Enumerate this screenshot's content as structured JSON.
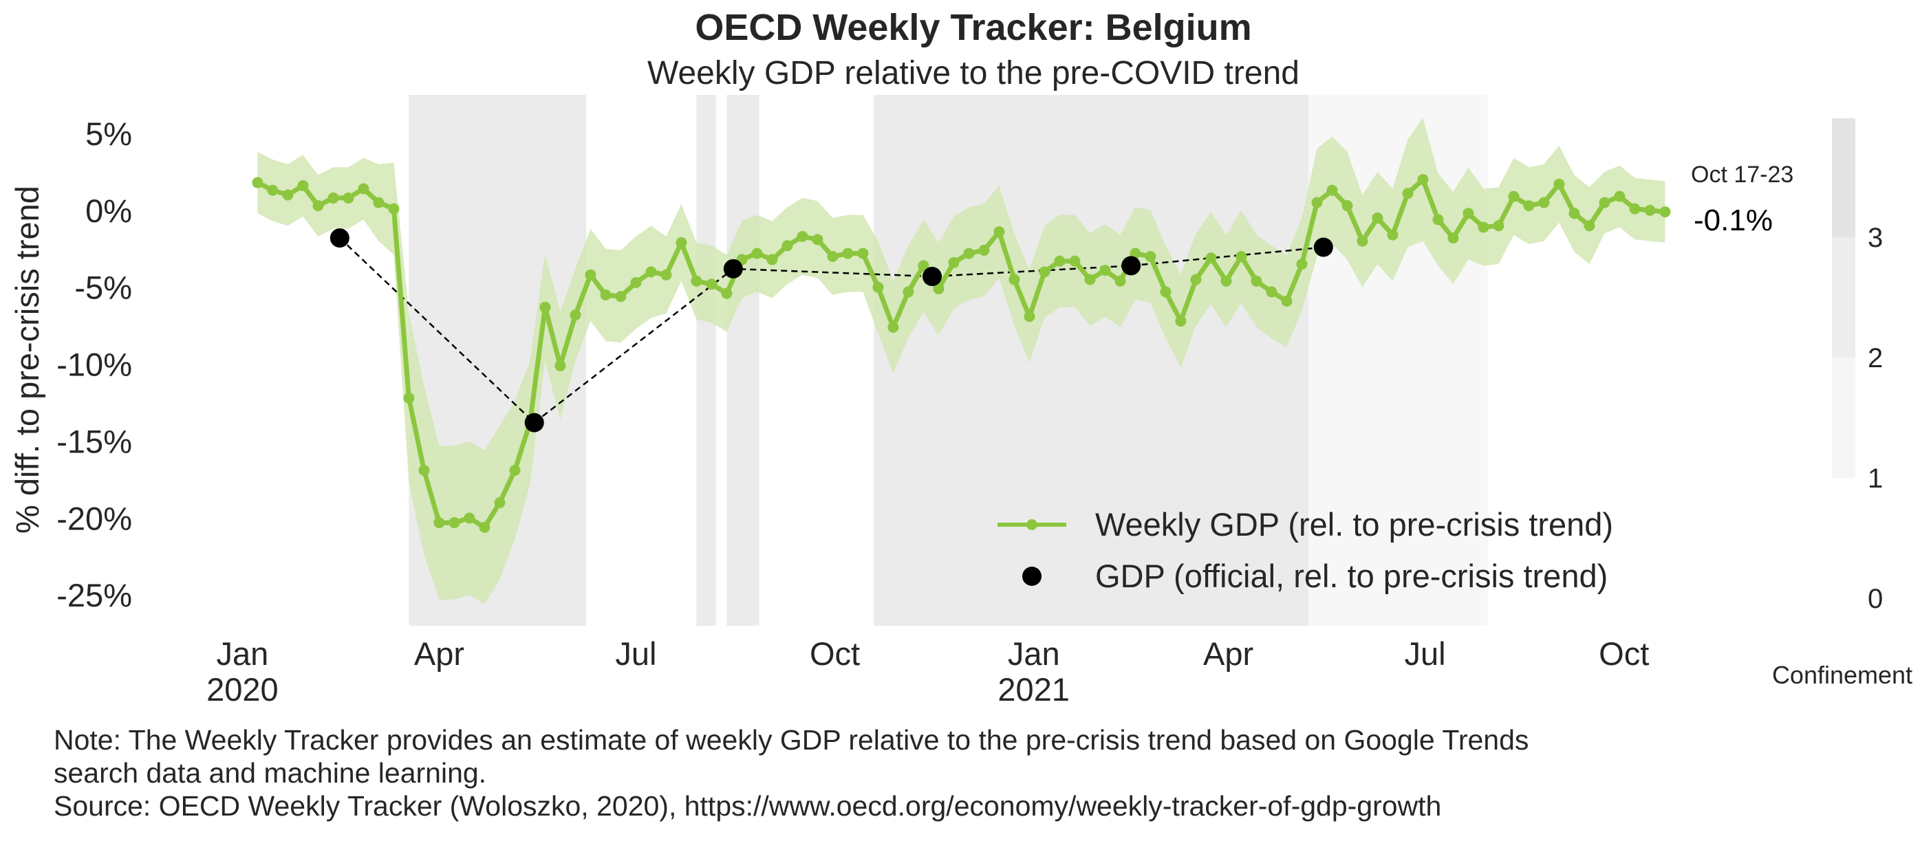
{
  "chart_data": {
    "type": "line",
    "title": "OECD Weekly Tracker: Belgium",
    "subtitle": "Weekly GDP relative to the pre-COVID trend",
    "ylabel": "% diff. to pre-crisis trend",
    "ylim": [
      -27,
      7.5
    ],
    "y_ticks": [
      {
        "value": 5,
        "label": "5%"
      },
      {
        "value": 0,
        "label": "0%"
      },
      {
        "value": -5,
        "label": "-5%"
      },
      {
        "value": -10,
        "label": "-10%"
      },
      {
        "value": -15,
        "label": "-15%"
      },
      {
        "value": -20,
        "label": "-20%"
      },
      {
        "value": -25,
        "label": "-25%"
      }
    ],
    "x_ticks": [
      {
        "date": "2020-01-01",
        "label": "Jan",
        "sublabel": "2020"
      },
      {
        "date": "2020-04-01",
        "label": "Apr",
        "sublabel": ""
      },
      {
        "date": "2020-07-01",
        "label": "Jul",
        "sublabel": ""
      },
      {
        "date": "2020-10-01",
        "label": "Oct",
        "sublabel": ""
      },
      {
        "date": "2021-01-01",
        "label": "Jan",
        "sublabel": "2021"
      },
      {
        "date": "2021-04-01",
        "label": "Apr",
        "sublabel": ""
      },
      {
        "date": "2021-07-01",
        "label": "Jul",
        "sublabel": ""
      },
      {
        "date": "2021-10-01",
        "label": "Oct",
        "sublabel": ""
      }
    ],
    "xlim": [
      "2019-12-01",
      "2021-10-31"
    ],
    "grid": false,
    "legend_placement": "lower-right",
    "series": [
      {
        "name": "Weekly GDP (rel. to pre-crisis trend)",
        "color": "#8cc63f",
        "band_color": "#d2e8b4",
        "x": [
          "2020-01-08",
          "2020-01-15",
          "2020-01-22",
          "2020-01-29",
          "2020-02-05",
          "2020-02-12",
          "2020-02-19",
          "2020-02-26",
          "2020-03-04",
          "2020-03-11",
          "2020-03-18",
          "2020-03-25",
          "2020-04-01",
          "2020-04-08",
          "2020-04-15",
          "2020-04-22",
          "2020-04-29",
          "2020-05-06",
          "2020-05-13",
          "2020-05-20",
          "2020-05-27",
          "2020-06-03",
          "2020-06-10",
          "2020-06-17",
          "2020-06-24",
          "2020-07-01",
          "2020-07-08",
          "2020-07-15",
          "2020-07-22",
          "2020-07-29",
          "2020-08-05",
          "2020-08-12",
          "2020-08-19",
          "2020-08-26",
          "2020-09-02",
          "2020-09-09",
          "2020-09-16",
          "2020-09-23",
          "2020-09-30",
          "2020-10-07",
          "2020-10-14",
          "2020-10-21",
          "2020-10-28",
          "2020-11-04",
          "2020-11-11",
          "2020-11-18",
          "2020-11-25",
          "2020-12-02",
          "2020-12-09",
          "2020-12-16",
          "2020-12-23",
          "2020-12-30",
          "2021-01-06",
          "2021-01-13",
          "2021-01-20",
          "2021-01-27",
          "2021-02-03",
          "2021-02-10",
          "2021-02-17",
          "2021-02-24",
          "2021-03-03",
          "2021-03-10",
          "2021-03-17",
          "2021-03-24",
          "2021-03-31",
          "2021-04-07",
          "2021-04-14",
          "2021-04-21",
          "2021-04-28",
          "2021-05-05",
          "2021-05-12",
          "2021-05-19",
          "2021-05-26",
          "2021-06-02",
          "2021-06-09",
          "2021-06-16",
          "2021-06-23",
          "2021-06-30",
          "2021-07-07",
          "2021-07-14",
          "2021-07-21",
          "2021-07-28",
          "2021-08-04",
          "2021-08-11",
          "2021-08-18",
          "2021-08-25",
          "2021-09-01",
          "2021-09-08",
          "2021-09-15",
          "2021-09-22",
          "2021-09-29",
          "2021-10-06",
          "2021-10-13",
          "2021-10-20"
        ],
        "values": [
          1.8,
          1.3,
          1.0,
          1.6,
          0.3,
          0.8,
          0.8,
          1.4,
          0.5,
          0.1,
          -12.2,
          -16.9,
          -20.3,
          -20.3,
          -20.0,
          -20.6,
          -19.0,
          -16.9,
          -13.8,
          -6.3,
          -10.1,
          -6.8,
          -4.2,
          -5.5,
          -5.6,
          -4.7,
          -4.0,
          -4.2,
          -2.1,
          -4.6,
          -4.8,
          -5.4,
          -3.2,
          -2.8,
          -3.2,
          -2.3,
          -1.7,
          -1.9,
          -3.0,
          -2.8,
          -2.8,
          -5.0,
          -7.6,
          -5.3,
          -3.6,
          -5.1,
          -3.4,
          -2.8,
          -2.6,
          -1.4,
          -4.5,
          -6.9,
          -4.0,
          -3.3,
          -3.3,
          -4.5,
          -3.9,
          -4.6,
          -2.8,
          -3.0,
          -5.3,
          -7.2,
          -4.5,
          -3.1,
          -4.6,
          -3.0,
          -4.6,
          -5.3,
          -5.9,
          -3.5,
          0.5,
          1.3,
          0.3,
          -2.0,
          -0.5,
          -1.6,
          1.1,
          2.0,
          -0.6,
          -1.8,
          -0.2,
          -1.1,
          -1.0,
          0.9,
          0.3,
          0.5,
          1.7,
          -0.2,
          -1.0,
          0.5,
          0.9,
          0.1,
          0.0,
          -0.1
        ],
        "band_halfwidth": [
          2.0,
          2.0,
          2.0,
          2.0,
          2.0,
          2.0,
          2.0,
          2.0,
          2.5,
          3.0,
          5.5,
          5.5,
          5.0,
          5.0,
          5.0,
          5.0,
          5.0,
          4.5,
          4.0,
          3.5,
          3.5,
          3.0,
          3.0,
          3.0,
          3.0,
          3.0,
          3.0,
          2.5,
          2.5,
          2.5,
          2.5,
          2.5,
          2.5,
          2.5,
          2.5,
          2.5,
          2.5,
          2.5,
          2.5,
          2.5,
          2.5,
          3.0,
          3.0,
          3.0,
          3.0,
          3.0,
          3.0,
          3.0,
          3.0,
          3.0,
          3.0,
          3.0,
          3.0,
          3.0,
          3.0,
          3.0,
          3.0,
          3.0,
          3.0,
          3.0,
          3.0,
          3.0,
          3.0,
          3.0,
          3.0,
          3.0,
          3.0,
          3.0,
          3.0,
          3.0,
          3.5,
          3.5,
          3.5,
          3.0,
          3.0,
          3.0,
          3.5,
          4.0,
          3.0,
          3.0,
          3.0,
          2.5,
          2.5,
          2.5,
          2.5,
          2.5,
          2.5,
          2.5,
          2.5,
          2.0,
          2.0,
          2.0,
          2.0,
          2.0
        ]
      },
      {
        "name": "GDP (official, rel. to pre-crisis trend)",
        "color": "#000000",
        "x": [
          "2020-02-15",
          "2020-05-15",
          "2020-08-15",
          "2020-11-15",
          "2021-02-15",
          "2021-05-15"
        ],
        "values": [
          -1.8,
          -13.8,
          -3.8,
          -4.3,
          -3.6,
          -2.4
        ]
      }
    ],
    "confinement": {
      "label": "Confinement",
      "ticks": [
        0,
        1,
        2,
        3
      ],
      "periods": [
        {
          "start": "2020-03-18",
          "end": "2020-06-08",
          "level": 3
        },
        {
          "start": "2020-07-29",
          "end": "2020-08-07",
          "level": 3
        },
        {
          "start": "2020-08-12",
          "end": "2020-08-27",
          "level": 3
        },
        {
          "start": "2020-10-19",
          "end": "2021-05-08",
          "level": 3
        },
        {
          "start": "2021-05-08",
          "end": "2021-07-30",
          "level": 1
        }
      ],
      "colors": {
        "1": "#f7f7f7",
        "2": "#f1f1f1",
        "3": "#ebebeb"
      }
    },
    "latest": {
      "date_label": "Oct 17-23",
      "value_label": "-0.1%"
    }
  },
  "note": {
    "line1": "Note: The Weekly Tracker provides an estimate of weekly GDP relative to the pre-crisis trend based on Google Trends",
    "line2": "search data and machine learning.",
    "line3": "Source: OECD Weekly Tracker (Woloszko, 2020), https://www.oecd.org/economy/weekly-tracker-of-gdp-growth"
  }
}
